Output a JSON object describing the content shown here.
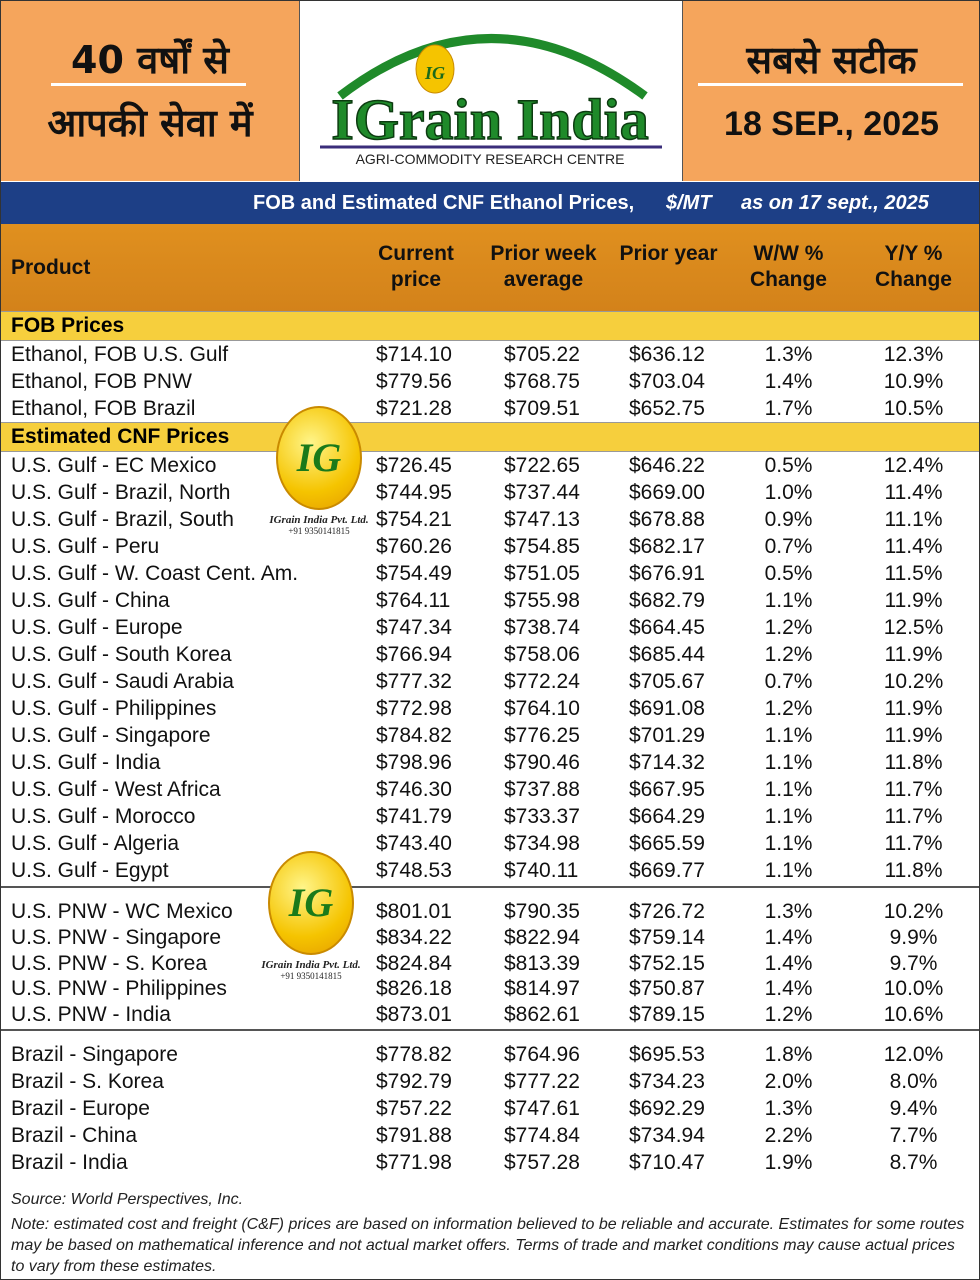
{
  "header": {
    "left_line1": "40 वर्षों से",
    "left_line2": "आपकी सेवा में",
    "logo_mark": "IG",
    "logo_name": "IGrain India",
    "logo_tagline": "AGRI-COMMODITY RESEARCH CENTRE",
    "right_line1": "सबसे सटीक",
    "date": "18 SEP., 2025"
  },
  "banner": {
    "title": "FOB and Estimated CNF Ethanol Prices,",
    "unit": "$/MT",
    "as_on": "as on 17 sept., 2025"
  },
  "table": {
    "columns": [
      "Product",
      "Current price",
      "Prior week average",
      "Prior year",
      "W/W % Change",
      "Y/Y % Change"
    ],
    "sections": [
      {
        "title": "FOB Prices",
        "rows": [
          [
            "Ethanol, FOB U.S. Gulf",
            "$714.10",
            "$705.22",
            "$636.12",
            "1.3%",
            "12.3%"
          ],
          [
            "Ethanol, FOB PNW",
            "$779.56",
            "$768.75",
            "$703.04",
            "1.4%",
            "10.9%"
          ],
          [
            "Ethanol, FOB Brazil",
            "$721.28",
            "$709.51",
            "$652.75",
            "1.7%",
            "10.5%"
          ]
        ]
      },
      {
        "title": "Estimated CNF Prices",
        "rows": [
          [
            "U.S. Gulf - EC Mexico",
            "$726.45",
            "$722.65",
            "$646.22",
            "0.5%",
            "12.4%"
          ],
          [
            "U.S. Gulf - Brazil, North",
            "$744.95",
            "$737.44",
            "$669.00",
            "1.0%",
            "11.4%"
          ],
          [
            "U.S. Gulf - Brazil, South",
            "$754.21",
            "$747.13",
            "$678.88",
            "0.9%",
            "11.1%"
          ],
          [
            "U.S. Gulf - Peru",
            "$760.26",
            "$754.85",
            "$682.17",
            "0.7%",
            "11.4%"
          ],
          [
            "U.S. Gulf - W. Coast Cent. Am.",
            "$754.49",
            "$751.05",
            "$676.91",
            "0.5%",
            "11.5%"
          ],
          [
            "U.S. Gulf - China",
            "$764.11",
            "$755.98",
            "$682.79",
            "1.1%",
            "11.9%"
          ],
          [
            "U.S. Gulf - Europe",
            "$747.34",
            "$738.74",
            "$664.45",
            "1.2%",
            "12.5%"
          ],
          [
            "U.S. Gulf - South Korea",
            "$766.94",
            "$758.06",
            "$685.44",
            "1.2%",
            "11.9%"
          ],
          [
            "U.S. Gulf - Saudi Arabia",
            "$777.32",
            "$772.24",
            "$705.67",
            "0.7%",
            "10.2%"
          ],
          [
            "U.S. Gulf - Philippines",
            "$772.98",
            "$764.10",
            "$691.08",
            "1.2%",
            "11.9%"
          ],
          [
            "U.S. Gulf - Singapore",
            "$784.82",
            "$776.25",
            "$701.29",
            "1.1%",
            "11.9%"
          ],
          [
            "U.S. Gulf - India",
            "$798.96",
            "$790.46",
            "$714.32",
            "1.1%",
            "11.8%"
          ],
          [
            "U.S. Gulf - West Africa",
            "$746.30",
            "$737.88",
            "$667.95",
            "1.1%",
            "11.7%"
          ],
          [
            "U.S. Gulf - Morocco",
            "$741.79",
            "$733.37",
            "$664.29",
            "1.1%",
            "11.7%"
          ],
          [
            "U.S. Gulf - Algeria",
            "$743.40",
            "$734.98",
            "$665.59",
            "1.1%",
            "11.7%"
          ],
          [
            "U.S. Gulf - Egypt",
            "$748.53",
            "$740.11",
            "$669.77",
            "1.1%",
            "11.8%"
          ]
        ]
      },
      {
        "rows": [
          [
            "U.S. PNW - WC Mexico",
            "$801.01",
            "$790.35",
            "$726.72",
            "1.3%",
            "10.2%"
          ],
          [
            "U.S. PNW - Singapore",
            "$834.22",
            "$822.94",
            "$759.14",
            "1.4%",
            "9.9%"
          ],
          [
            "U.S. PNW - S. Korea",
            "$824.84",
            "$813.39",
            "$752.15",
            "1.4%",
            "9.7%"
          ],
          [
            "U.S. PNW - Philippines",
            "$826.18",
            "$814.97",
            "$750.87",
            "1.4%",
            "10.0%"
          ],
          [
            "U.S. PNW - India",
            "$873.01",
            "$862.61",
            "$789.15",
            "1.2%",
            "10.6%"
          ]
        ]
      },
      {
        "rows": [
          [
            "Brazil - Singapore",
            "$778.82",
            "$764.96",
            "$695.53",
            "1.8%",
            "12.0%"
          ],
          [
            "Brazil - S. Korea",
            "$792.79",
            "$777.22",
            "$734.23",
            "2.0%",
            "8.0%"
          ],
          [
            "Brazil - Europe",
            "$757.22",
            "$747.61",
            "$692.29",
            "1.3%",
            "9.4%"
          ],
          [
            "Brazil - China",
            "$791.88",
            "$774.84",
            "$734.94",
            "2.2%",
            "7.7%"
          ],
          [
            "Brazil - India",
            "$771.98",
            "$757.28",
            "$710.47",
            "1.9%",
            "8.7%"
          ]
        ]
      }
    ]
  },
  "watermark": {
    "mark": "IG",
    "company": "IGrain India Pvt. Ltd.",
    "phone": "+91 9350141815"
  },
  "footer": {
    "source": "Source: World Perspectives, Inc.",
    "note": "Note: estimated cost and freight (C&F) prices are based on information believed to be reliable and accurate. Estimates for some routes may be based on mathematical inference and not actual market offers. Terms of trade and market conditions may cause actual prices to vary from these estimates."
  }
}
